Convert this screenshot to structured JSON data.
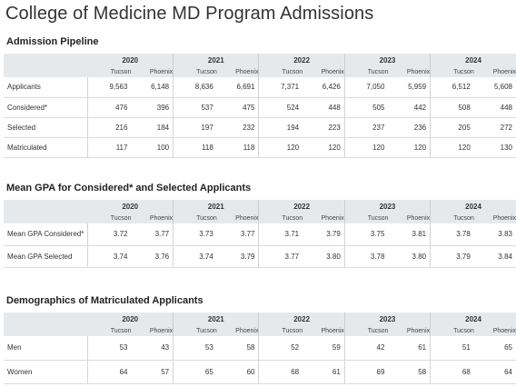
{
  "page_title": "College of Medicine MD Program Admissions",
  "years": [
    "2020",
    "2021",
    "2022",
    "2023",
    "2024"
  ],
  "campuses": [
    "Tucson",
    "Phoenix"
  ],
  "pipeline": {
    "title": "Admission Pipeline",
    "rows": [
      {
        "label": "Applicants",
        "values": [
          "9,563",
          "6,148",
          "8,636",
          "6,691",
          "7,371",
          "6,426",
          "7,050",
          "5,959",
          "6,512",
          "5,608"
        ]
      },
      {
        "label": "Considered*",
        "values": [
          "476",
          "396",
          "537",
          "475",
          "524",
          "448",
          "505",
          "442",
          "508",
          "448"
        ]
      },
      {
        "label": "Selected",
        "values": [
          "216",
          "184",
          "197",
          "232",
          "194",
          "223",
          "237",
          "236",
          "205",
          "272"
        ]
      },
      {
        "label": "Matriculated",
        "values": [
          "117",
          "100",
          "118",
          "118",
          "120",
          "120",
          "120",
          "120",
          "120",
          "130"
        ]
      }
    ]
  },
  "gpa": {
    "title": "Mean GPA for Considered* and Selected Applicants",
    "rows": [
      {
        "label": "Mean GPA Considered*",
        "values": [
          "3.72",
          "3.77",
          "3.73",
          "3.77",
          "3.71",
          "3.79",
          "3.75",
          "3.81",
          "3.78",
          "3.83"
        ]
      },
      {
        "label": "Mean GPA Selected",
        "values": [
          "3.74",
          "3.76",
          "3.74",
          "3.79",
          "3.77",
          "3.80",
          "3.78",
          "3.80",
          "3.79",
          "3.84"
        ]
      }
    ]
  },
  "demographics": {
    "title": "Demographics of Matriculated Applicants",
    "rows": [
      {
        "label": "Men",
        "values": [
          "53",
          "43",
          "53",
          "58",
          "52",
          "59",
          "42",
          "61",
          "51",
          "65"
        ]
      },
      {
        "label": "Women",
        "values": [
          "64",
          "57",
          "65",
          "60",
          "68",
          "61",
          "69",
          "58",
          "68",
          "64"
        ]
      }
    ]
  }
}
